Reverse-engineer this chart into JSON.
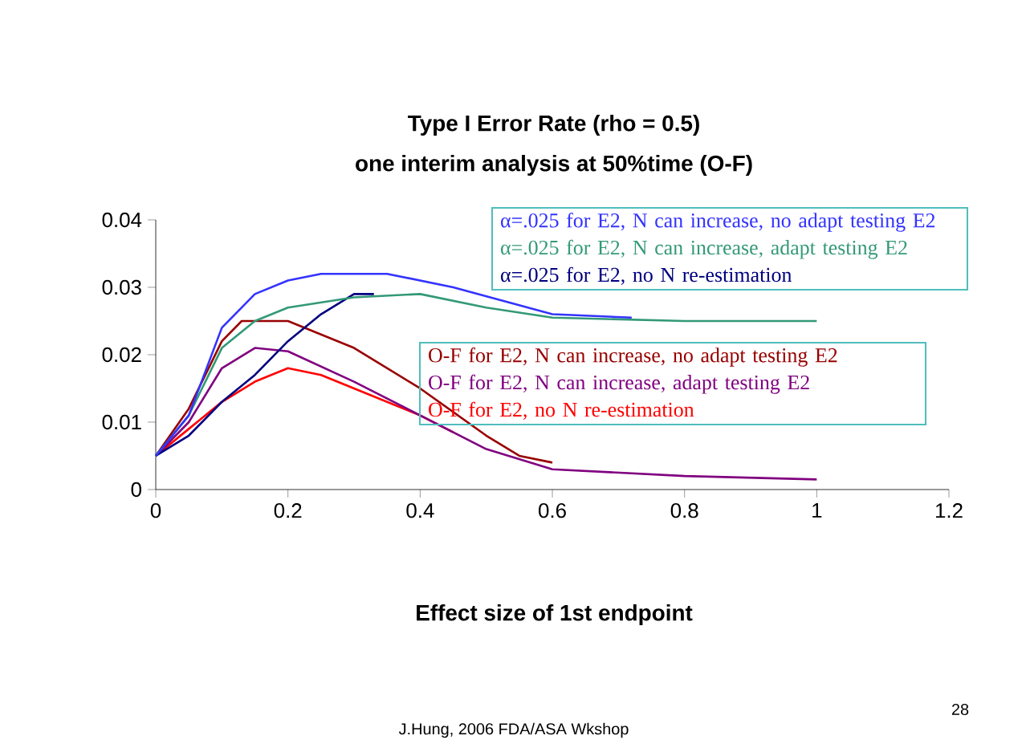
{
  "chart_data": {
    "type": "line",
    "title": "Type I Error Rate (rho = 0.5)",
    "subtitle": "one interim analysis at 50%time (O-F)",
    "xlabel": "Effect size of 1st endpoint",
    "xlim": [
      0,
      1.2
    ],
    "xticks": [
      0,
      0.2,
      0.4,
      0.6,
      0.8,
      1,
      1.2
    ],
    "ylim": [
      0,
      0.04
    ],
    "yticks": [
      0,
      0.01,
      0.02,
      0.03,
      0.04
    ],
    "grid": false,
    "legend": "top right",
    "marker": "none",
    "line_style": "solid",
    "annotations": [
      "J.Hung, 2006 FDA/ASA Wkshop",
      "28"
    ],
    "series": [
      {
        "name": "α=.025 for E2, N can increase, no adapt testing E2",
        "color": "#3333ff",
        "x": [
          0,
          0.05,
          0.1,
          0.15,
          0.2,
          0.25,
          0.35,
          0.45,
          0.6,
          0.72
        ],
        "values": [
          0.005,
          0.011,
          0.024,
          0.029,
          0.031,
          0.032,
          0.032,
          0.03,
          0.026,
          0.0255
        ]
      },
      {
        "name": "α=.025 for E2, N can increase, adapt testing E2",
        "color": "#339977",
        "x": [
          0,
          0.05,
          0.1,
          0.15,
          0.2,
          0.3,
          0.4,
          0.5,
          0.6,
          0.8,
          1
        ],
        "values": [
          0.005,
          0.011,
          0.021,
          0.025,
          0.027,
          0.0285,
          0.029,
          0.027,
          0.0255,
          0.025,
          0.025
        ]
      },
      {
        "name": "α=.025 for E2, no N re-estimation",
        "color": "#000080",
        "x": [
          0,
          0.05,
          0.1,
          0.15,
          0.2,
          0.25,
          0.3,
          0.33
        ],
        "values": [
          0.005,
          0.008,
          0.013,
          0.017,
          0.022,
          0.026,
          0.029,
          0.029
        ]
      },
      {
        "name": "O-F for E2, N can increase, no adapt testing E2",
        "color": "#990000",
        "x": [
          0,
          0.05,
          0.1,
          0.13,
          0.2,
          0.3,
          0.4,
          0.5,
          0.55,
          0.6
        ],
        "values": [
          0.005,
          0.012,
          0.022,
          0.025,
          0.025,
          0.021,
          0.015,
          0.008,
          0.005,
          0.004
        ]
      },
      {
        "name": "O-F for E2, N can increase, adapt testing E2",
        "color": "#800080",
        "x": [
          0,
          0.05,
          0.1,
          0.15,
          0.2,
          0.3,
          0.4,
          0.5,
          0.6,
          0.8,
          1
        ],
        "values": [
          0.005,
          0.01,
          0.018,
          0.021,
          0.0205,
          0.016,
          0.011,
          0.006,
          0.003,
          0.002,
          0.0015
        ]
      },
      {
        "name": "O-F for E2, no N re-estimation",
        "color": "#ff0000",
        "x": [
          0,
          0.05,
          0.1,
          0.15,
          0.2,
          0.25,
          0.3,
          0.4,
          0.45
        ],
        "values": [
          0.005,
          0.009,
          0.013,
          0.016,
          0.018,
          0.017,
          0.015,
          0.011,
          0.0085
        ]
      }
    ]
  }
}
